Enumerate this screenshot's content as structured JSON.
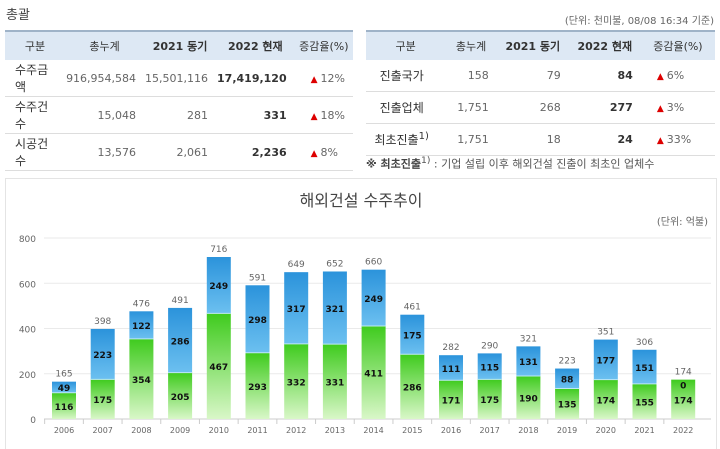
{
  "summary": {
    "title": "총괄",
    "unit_note": "(단위: 천미불, 08/08 16:34 기준)",
    "headers": [
      "구분",
      "총누계",
      "2021 동기",
      "2022 현재",
      "증감율(%)"
    ],
    "left_rows": [
      {
        "label": "수주금액",
        "total": "916,954,584",
        "prev": "15,501,116",
        "current": "17,419,120",
        "rate": "12%"
      },
      {
        "label": "수주건수",
        "total": "15,048",
        "prev": "281",
        "current": "331",
        "rate": "18%"
      },
      {
        "label": "시공건수",
        "total": "13,576",
        "prev": "2,061",
        "current": "2,236",
        "rate": "8%"
      }
    ],
    "right_rows": [
      {
        "label": "진출국가",
        "total": "158",
        "prev": "79",
        "current": "84",
        "rate": "6%"
      },
      {
        "label": "진출업체",
        "total": "1,751",
        "prev": "268",
        "current": "277",
        "rate": "3%"
      },
      {
        "label": "최초진출",
        "sup": "1)",
        "total": "1,751",
        "prev": "18",
        "current": "24",
        "rate": "33%"
      }
    ],
    "arrow_icon": "up-arrow-icon",
    "arrow_color": "#dd0000",
    "footnote_mark": "※ 최초진출",
    "footnote_sup": "1)",
    "footnote_text": " : 기업 설립 이후 해외건설 진출이 최초인 업체수"
  },
  "chart_data": {
    "type": "bar",
    "stacked": true,
    "title": "해외건설 수주추이",
    "unit": "(단위: 억불)",
    "categories": [
      "2006",
      "2007",
      "2008",
      "2009",
      "2010",
      "2011",
      "2012",
      "2013",
      "2014",
      "2015",
      "2016",
      "2017",
      "2018",
      "2019",
      "2020",
      "2021",
      "2022"
    ],
    "series": [
      {
        "values": [
          116,
          175,
          354,
          205,
          467,
          293,
          332,
          331,
          411,
          286,
          171,
          175,
          190,
          135,
          174,
          155,
          174
        ],
        "color": "#44cc22"
      },
      {
        "values": [
          49,
          223,
          122,
          286,
          249,
          298,
          317,
          321,
          249,
          175,
          111,
          115,
          131,
          88,
          177,
          151,
          0
        ],
        "color": "#2f96dc"
      }
    ],
    "totals": [
      165,
      398,
      476,
      491,
      716,
      591,
      649,
      652,
      660,
      461,
      282,
      290,
      321,
      223,
      351,
      306,
      174
    ],
    "yticks": [
      0,
      200,
      400,
      600,
      800
    ],
    "ylim": [
      0,
      800
    ],
    "grid": true
  }
}
